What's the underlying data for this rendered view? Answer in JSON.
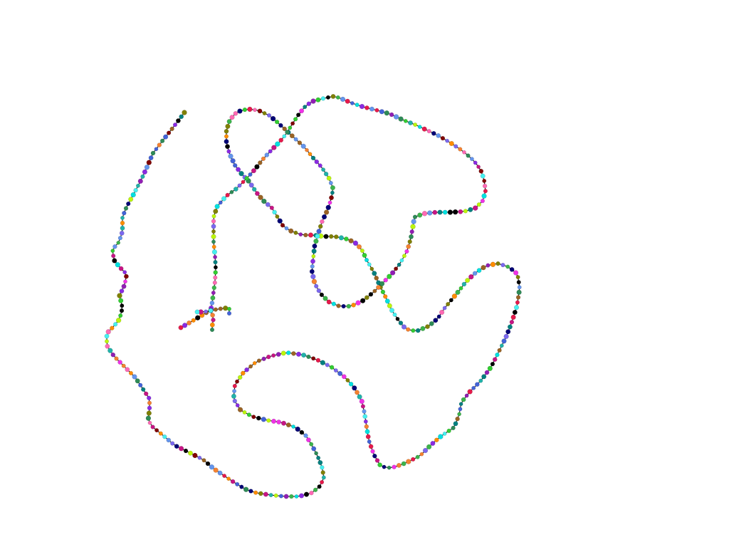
{
  "diagram": {
    "kind": "node-link graph (long chain with one branching end)",
    "background": "#ffffff",
    "edge_color": "#000000",
    "node_palette": [
      "#e6194b",
      "#3cb44b",
      "#00e0e0",
      "#4363d8",
      "#f58231",
      "#911eb4",
      "#46f0f0",
      "#f032e6",
      "#bcf60c",
      "#008080",
      "#9a6324",
      "#800000",
      "#808000",
      "#000075",
      "#000000",
      "#2e8b57",
      "#ff69b4",
      "#7b68ee",
      "#20b2aa",
      "#c71585",
      "#6495ed",
      "#ff8c00",
      "#32cd32",
      "#8a2be2"
    ]
  }
}
